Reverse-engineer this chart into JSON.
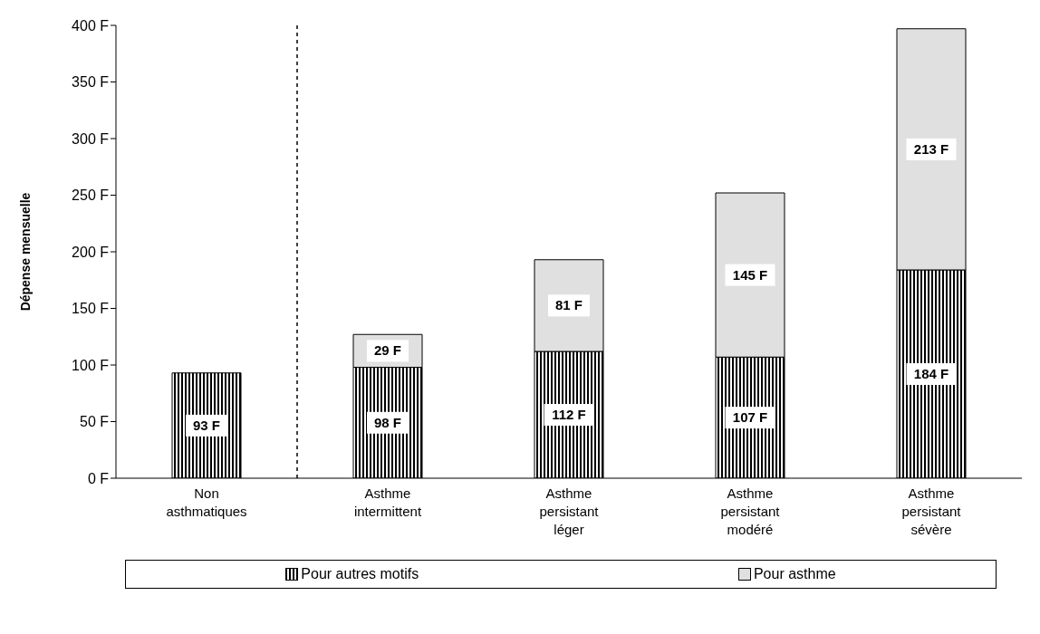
{
  "chart_data": {
    "type": "bar",
    "stacked": true,
    "ylabel": "Dépense mensuelle",
    "categories": [
      "Non asthmatiques",
      "Asthme intermittent",
      "Asthme persistant léger",
      "Asthme persistant modéré",
      "Asthme persistant sévère"
    ],
    "series": [
      {
        "name": "Pour autres motifs",
        "color": "#000000",
        "values": [
          93,
          98,
          112,
          107,
          184
        ],
        "value_labels": [
          "93 F",
          "98 F",
          "112 F",
          "107 F",
          "184 F"
        ]
      },
      {
        "name": "Pour asthme",
        "color": "#e0e0e0",
        "values": [
          null,
          29,
          81,
          145,
          213
        ],
        "value_labels": [
          null,
          "29 F",
          "81 F",
          "145 F",
          "213 F"
        ]
      }
    ],
    "ylim": [
      0,
      400
    ],
    "yticks": [
      {
        "value": 0,
        "label": "0 F"
      },
      {
        "value": 50,
        "label": "50 F"
      },
      {
        "value": 100,
        "label": "100 F"
      },
      {
        "value": 150,
        "label": "150 F"
      },
      {
        "value": 200,
        "label": "200 F"
      },
      {
        "value": 250,
        "label": "250 F"
      },
      {
        "value": 300,
        "label": "300 F"
      },
      {
        "value": 350,
        "label": "350 F"
      },
      {
        "value": 400,
        "label": "400 F"
      }
    ],
    "legend": "bottom",
    "grid": false
  }
}
